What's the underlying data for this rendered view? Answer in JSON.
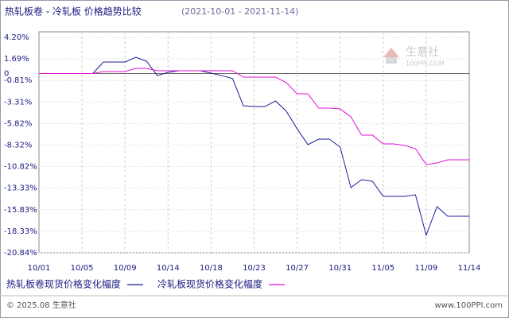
{
  "chart_data": {
    "type": "line",
    "title": "热轧板卷 - 冷轧板 价格趋势比较",
    "subtitle": "(2021-10-01 - 2021-11-14)",
    "watermark": {
      "name": "生意社",
      "site": "100PPI.COM"
    },
    "categories": [
      "10/01",
      null,
      null,
      null,
      "10/05",
      null,
      null,
      null,
      "10/09",
      null,
      null,
      null,
      "10/14",
      null,
      null,
      null,
      "10/18",
      null,
      null,
      null,
      "10/23",
      null,
      null,
      null,
      "10/27",
      null,
      null,
      null,
      "10/31",
      null,
      null,
      null,
      "11/05",
      null,
      null,
      null,
      "11/09",
      null,
      null,
      null,
      "11/14"
    ],
    "series": [
      {
        "name": "热轧板卷现货价格变化幅度",
        "color": "#1c1c9c",
        "values": [
          0,
          0,
          0,
          0,
          0,
          0,
          1.34,
          1.34,
          1.34,
          1.89,
          1.43,
          -0.24,
          0.13,
          0.32,
          0.32,
          0.32,
          0.04,
          -0.24,
          -0.6,
          -3.75,
          -3.84,
          -3.84,
          -3.19,
          -4.39,
          -6.43,
          -8.27,
          -7.63,
          -7.63,
          -8.55,
          -13.26,
          -12.34,
          -12.52,
          -14.28,
          -14.28,
          -14.28,
          -14.1,
          -18.8,
          -15.48,
          -16.59,
          -16.59,
          -16.59
        ]
      },
      {
        "name": "冷轧板现货价格变化幅度",
        "color": "#e010d8",
        "values": [
          0,
          0,
          0,
          0,
          0,
          0,
          0.23,
          0.23,
          0.23,
          0.6,
          0.6,
          0.32,
          0.32,
          0.32,
          0.32,
          0.32,
          0.32,
          0.32,
          0.32,
          -0.42,
          -0.42,
          -0.42,
          -0.42,
          -1.07,
          -2.36,
          -2.36,
          -4.02,
          -4.02,
          -4.12,
          -5.04,
          -7.17,
          -7.17,
          -8.18,
          -8.18,
          -8.37,
          -8.74,
          -10.58,
          -10.4,
          -10.03,
          -10.03,
          -10.03
        ]
      }
    ],
    "ylim": [
      -20.84,
      4.2
    ],
    "yticks": [
      {
        "value": 4.2,
        "label": "4.20%"
      },
      {
        "value": 1.69,
        "label": "1.69%"
      },
      0,
      {
        "value": -0.81,
        "label": "-0.81%"
      },
      {
        "value": -3.31,
        "label": "-3.31%"
      },
      {
        "value": -5.82,
        "label": "-5.82%"
      },
      {
        "value": -8.32,
        "label": "-8.32%"
      },
      {
        "value": -10.82,
        "label": "-10.82%"
      },
      {
        "value": -13.33,
        "label": "-13.33%"
      },
      {
        "value": -15.83,
        "label": "-15.83%"
      },
      {
        "value": -18.33,
        "label": "-18.33%"
      },
      {
        "value": -20.84,
        "label": "-20.84%"
      }
    ],
    "grid": true,
    "legend": "bottom"
  },
  "footer": {
    "left": "© 2025.08 生意社",
    "right": "www.100PPI.com"
  }
}
